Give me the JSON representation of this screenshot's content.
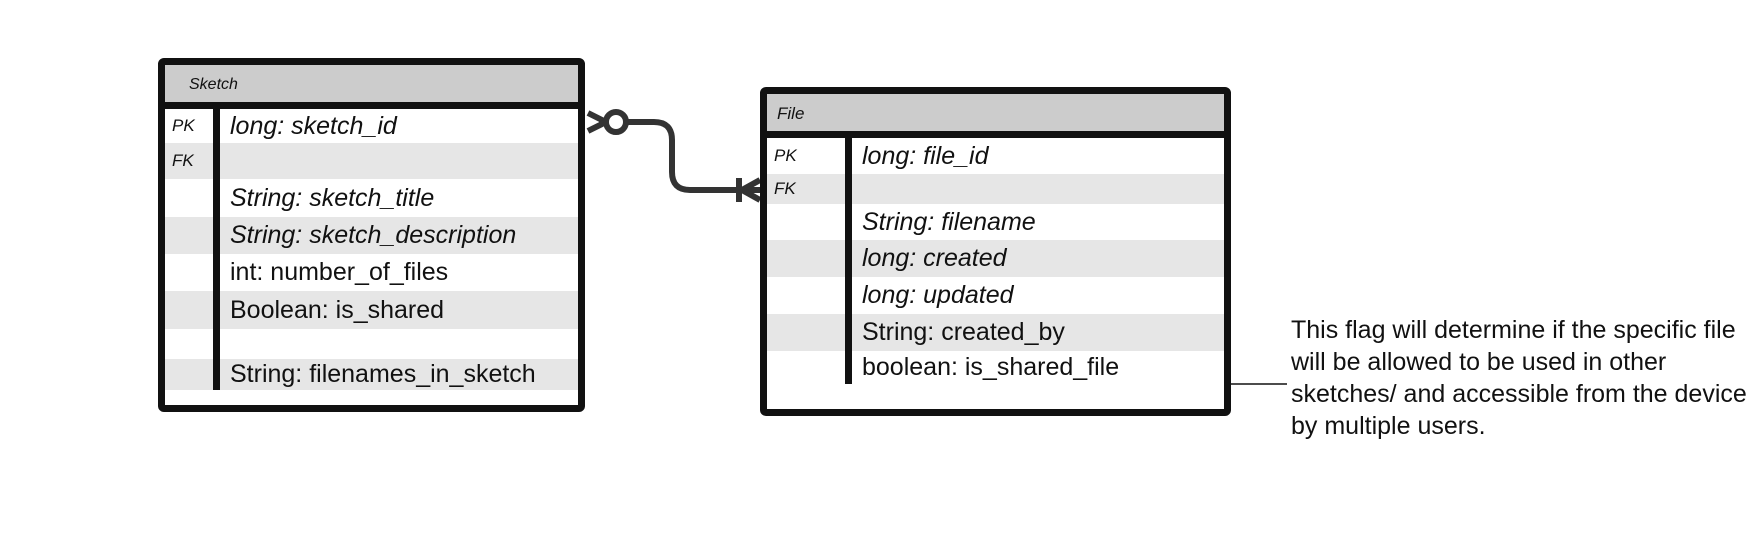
{
  "entities": {
    "sketch": {
      "title": "Sketch",
      "rows": [
        {
          "key": "PK",
          "field": "long: sketch_id",
          "italic": true
        },
        {
          "key": "FK",
          "field": "",
          "italic": true
        },
        {
          "key": "",
          "field": "String: sketch_title",
          "italic": true
        },
        {
          "key": "",
          "field": "String: sketch_description",
          "italic": true
        },
        {
          "key": "",
          "field": "int: number_of_files",
          "italic": false
        },
        {
          "key": "",
          "field": "Boolean: is_shared",
          "italic": false
        },
        {
          "key": "",
          "field": "",
          "italic": false
        },
        {
          "key": "",
          "field": "String: filenames_in_sketch",
          "italic": false
        }
      ]
    },
    "file": {
      "title": "File",
      "rows": [
        {
          "key": "PK",
          "field": "long: file_id",
          "italic": true
        },
        {
          "key": "FK",
          "field": "",
          "italic": true
        },
        {
          "key": "",
          "field": "String: filename",
          "italic": true
        },
        {
          "key": "",
          "field": "long: created",
          "italic": true
        },
        {
          "key": "",
          "field": "long: updated",
          "italic": true
        },
        {
          "key": "",
          "field": "String: created_by",
          "italic": false
        },
        {
          "key": "",
          "field": "boolean: is_shared_file",
          "italic": false
        }
      ]
    }
  },
  "note": {
    "text": "This flag will determine if the specific file will be allowed to be used in other sketches/ and accessible from the device by multiple users."
  },
  "colors": {
    "border": "#111111",
    "header_fill": "#cccccc",
    "alt_row_fill": "#e6e6e6",
    "connector": "#333333"
  }
}
